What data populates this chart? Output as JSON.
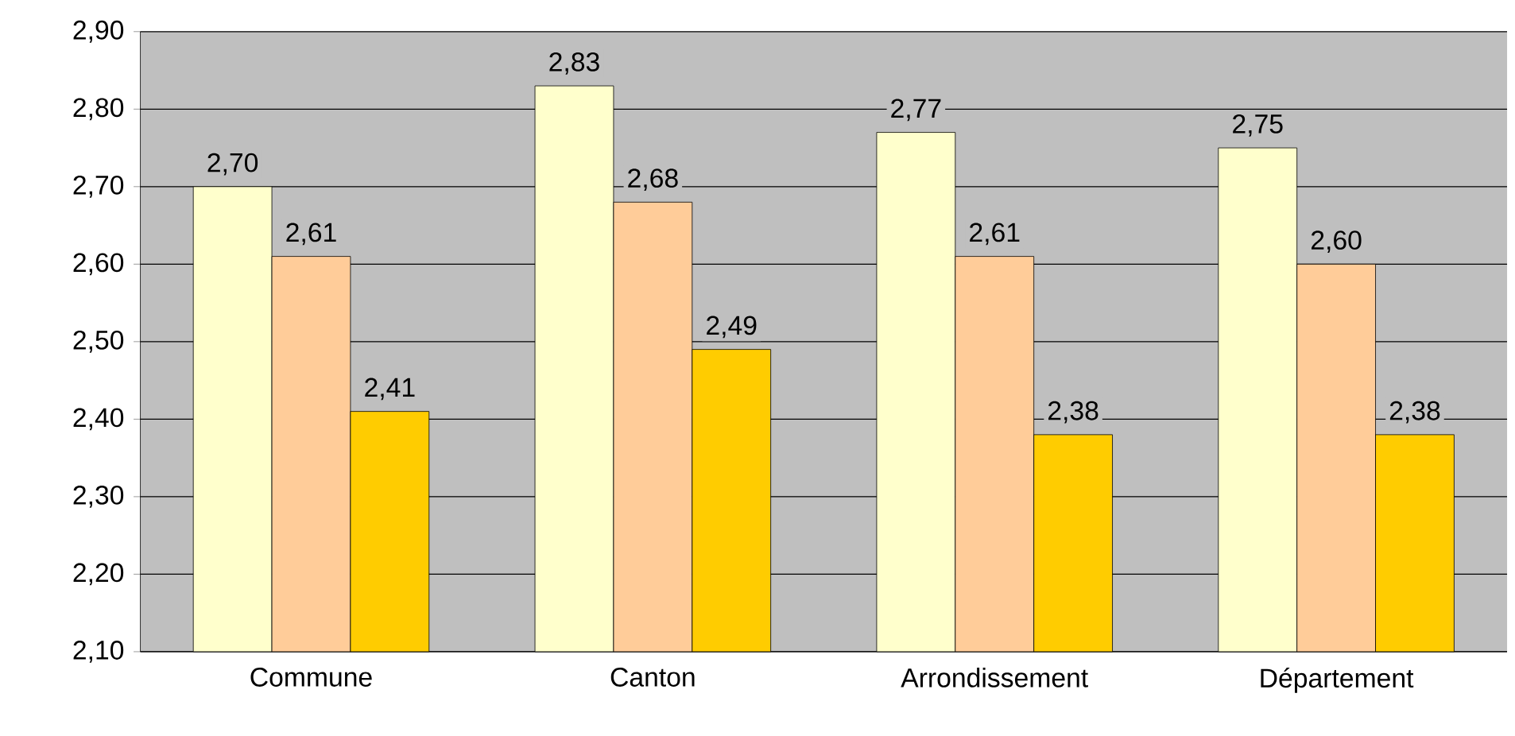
{
  "chart_data": {
    "type": "bar",
    "categories": [
      "Commune",
      "Canton",
      "Arrondissement",
      "Département"
    ],
    "series": [
      {
        "color": "#ffffcc",
        "values": [
          2.7,
          2.83,
          2.77,
          2.75
        ],
        "value_labels": [
          "2,70",
          "2,83",
          "2,77",
          "2,75"
        ]
      },
      {
        "color": "#ffcc99",
        "values": [
          2.61,
          2.68,
          2.61,
          2.6
        ],
        "value_labels": [
          "2,61",
          "2,68",
          "2,61",
          "2,60"
        ]
      },
      {
        "color": "#ffcc00",
        "values": [
          2.41,
          2.49,
          2.38,
          2.38
        ],
        "value_labels": [
          "2,41",
          "2,49",
          "2,38",
          "2,38"
        ]
      }
    ],
    "ylim": [
      2.1,
      2.9
    ],
    "yticks": [
      {
        "value": 2.1,
        "label": "2,10"
      },
      {
        "value": 2.2,
        "label": "2,20"
      },
      {
        "value": 2.3,
        "label": "2,30"
      },
      {
        "value": 2.4,
        "label": "2,40"
      },
      {
        "value": 2.5,
        "label": "2,50"
      },
      {
        "value": 2.6,
        "label": "2,60"
      },
      {
        "value": 2.7,
        "label": "2,70"
      },
      {
        "value": 2.8,
        "label": "2,80"
      },
      {
        "value": 2.9,
        "label": "2,90"
      }
    ],
    "grid": "y",
    "legend": false
  }
}
